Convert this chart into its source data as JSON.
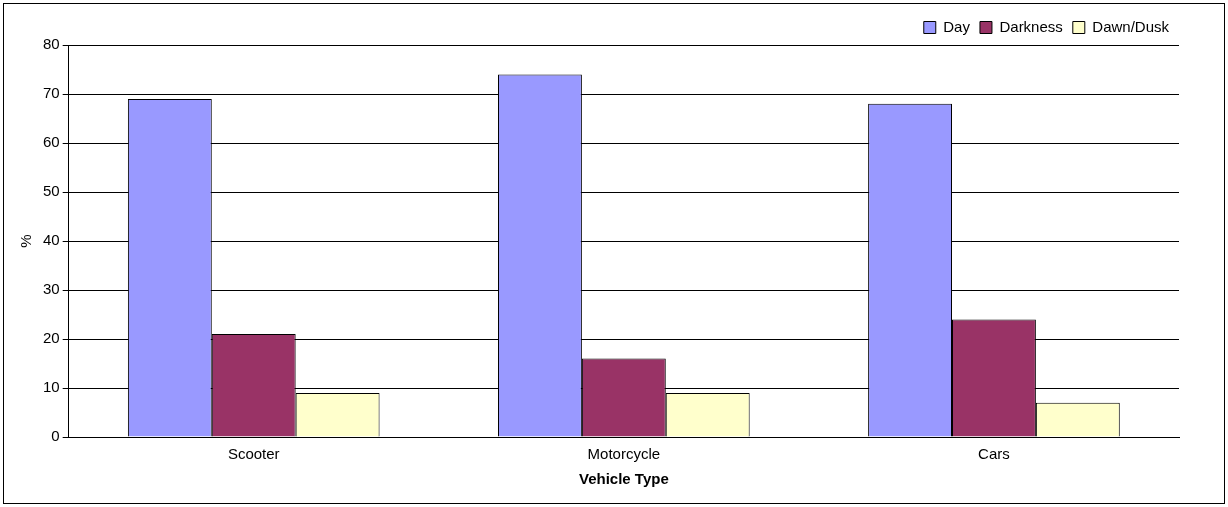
{
  "chart_data": {
    "type": "bar",
    "xlabel": "Vehicle Type",
    "ylabel": "%",
    "categories": [
      "Scooter",
      "Motorcycle",
      "Cars"
    ],
    "series": [
      {
        "name": "Day",
        "color": "#9999ff",
        "values": [
          69,
          74,
          68
        ]
      },
      {
        "name": "Darkness",
        "color": "#993366",
        "values": [
          21,
          16,
          24
        ]
      },
      {
        "name": "Dawn/Dusk",
        "color": "#ffffcc",
        "values": [
          9,
          9,
          7
        ]
      }
    ],
    "ylim": [
      0,
      80
    ],
    "yticks": [
      0,
      10,
      20,
      30,
      40,
      50,
      60,
      70,
      80
    ],
    "grid": "y",
    "legend": "top right"
  }
}
